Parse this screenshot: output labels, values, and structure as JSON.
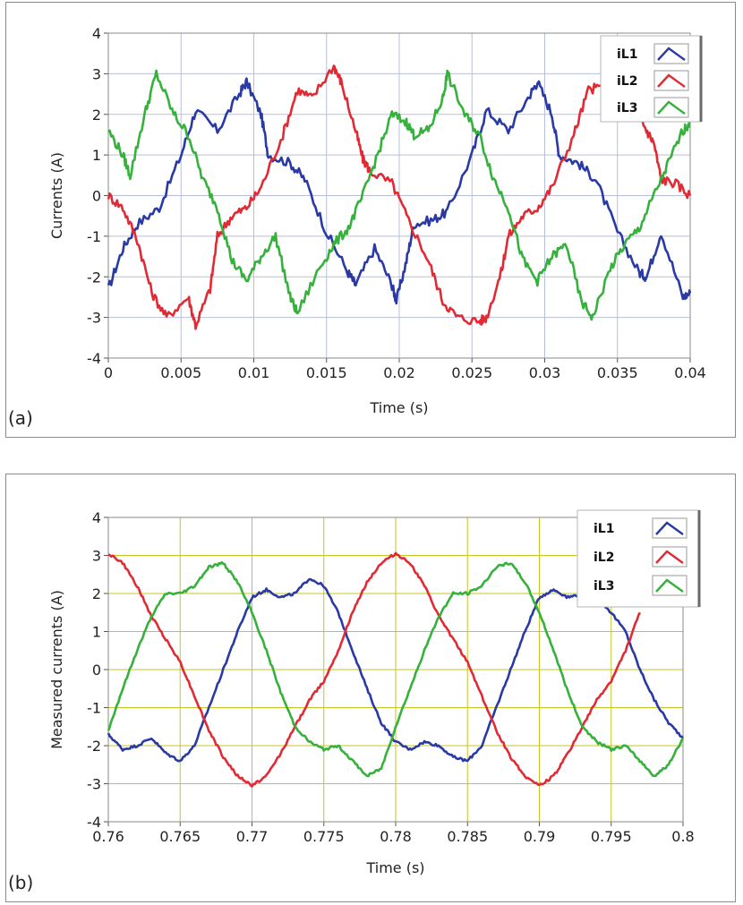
{
  "chart_data": [
    {
      "type": "line",
      "panel_label": "(a)",
      "xlabel": "Time (s)",
      "ylabel": "Currents (A)",
      "xlim": [
        0,
        0.04
      ],
      "ylim": [
        -4,
        4
      ],
      "x_ticks": [
        "0",
        "0.005",
        "0.01",
        "0.015",
        "0.02",
        "0.025",
        "0.03",
        "0.035",
        "0.04"
      ],
      "y_ticks": [
        "-4",
        "-3",
        "-2",
        "-1",
        "0",
        "1",
        "2",
        "3",
        "4"
      ],
      "grid": "on",
      "grid_color": "#b8bfdc",
      "legend_position": "top-right",
      "series": [
        {
          "name": "iL1",
          "color": "#2a3aa5",
          "points": [
            [
              0,
              -2.3
            ],
            [
              0.001,
              -1.3
            ],
            [
              0.002,
              -0.7
            ],
            [
              0.0035,
              -0.3
            ],
            [
              0.005,
              1.0
            ],
            [
              0.006,
              2.1
            ],
            [
              0.0075,
              1.6
            ],
            [
              0.009,
              2.5
            ],
            [
              0.0095,
              2.8
            ],
            [
              0.0105,
              2.0
            ],
            [
              0.011,
              1.0
            ],
            [
              0.0125,
              0.8
            ],
            [
              0.0135,
              0.4
            ],
            [
              0.015,
              -0.9
            ],
            [
              0.0165,
              -1.9
            ],
            [
              0.017,
              -2.2
            ],
            [
              0.0183,
              -1.3
            ],
            [
              0.0195,
              -2.2
            ],
            [
              0.0198,
              -2.6
            ],
            [
              0.0205,
              -1.6
            ],
            [
              0.021,
              -0.7
            ],
            [
              0.0223,
              -0.6
            ],
            [
              0.0233,
              -0.4
            ],
            [
              0.025,
              1.0
            ],
            [
              0.026,
              2.1
            ],
            [
              0.0275,
              1.6
            ],
            [
              0.029,
              2.5
            ],
            [
              0.0295,
              2.8
            ],
            [
              0.0305,
              2.0
            ],
            [
              0.031,
              1.0
            ],
            [
              0.0323,
              0.8
            ],
            [
              0.0335,
              0.4
            ],
            [
              0.035,
              -0.9
            ],
            [
              0.0365,
              -1.9
            ],
            [
              0.037,
              -2.0
            ],
            [
              0.038,
              -0.9
            ],
            [
              0.0395,
              -2.5
            ],
            [
              0.04,
              -2.4
            ]
          ]
        },
        {
          "name": "iL2",
          "color": "#e02b35",
          "points": [
            [
              0,
              0.0
            ],
            [
              0.001,
              -0.3
            ],
            [
              0.002,
              -1.1
            ],
            [
              0.003,
              -2.4
            ],
            [
              0.004,
              -3.0
            ],
            [
              0.0055,
              -2.5
            ],
            [
              0.006,
              -3.2
            ],
            [
              0.007,
              -2.3
            ],
            [
              0.0075,
              -1.0
            ],
            [
              0.0085,
              -0.5
            ],
            [
              0.0095,
              -0.3
            ],
            [
              0.0105,
              0.2
            ],
            [
              0.012,
              1.5
            ],
            [
              0.013,
              2.6
            ],
            [
              0.014,
              2.4
            ],
            [
              0.0155,
              3.2
            ],
            [
              0.016,
              2.8
            ],
            [
              0.017,
              1.6
            ],
            [
              0.0175,
              0.9
            ],
            [
              0.018,
              0.6
            ],
            [
              0.0195,
              0.3
            ],
            [
              0.0205,
              -0.5
            ],
            [
              0.022,
              -1.6
            ],
            [
              0.023,
              -2.6
            ],
            [
              0.024,
              -3.0
            ],
            [
              0.0255,
              -3.1
            ],
            [
              0.026,
              -3.0
            ],
            [
              0.027,
              -1.9
            ],
            [
              0.0275,
              -1.0
            ],
            [
              0.0285,
              -0.5
            ],
            [
              0.0295,
              -0.3
            ],
            [
              0.0305,
              0.2
            ],
            [
              0.032,
              1.5
            ],
            [
              0.033,
              2.6
            ],
            [
              0.034,
              2.7
            ],
            [
              0.0355,
              2.6
            ],
            [
              0.036,
              2.4
            ],
            [
              0.037,
              1.6
            ],
            [
              0.0375,
              1.3
            ],
            [
              0.038,
              0.4
            ],
            [
              0.039,
              0.3
            ],
            [
              0.04,
              0.0
            ]
          ]
        },
        {
          "name": "iL3",
          "color": "#35b13c",
          "points": [
            [
              0,
              1.6
            ],
            [
              0.001,
              1.0
            ],
            [
              0.0015,
              0.5
            ],
            [
              0.0025,
              2.0
            ],
            [
              0.0033,
              3.0
            ],
            [
              0.0045,
              2.0
            ],
            [
              0.0055,
              1.5
            ],
            [
              0.0065,
              0.4
            ],
            [
              0.0075,
              -0.3
            ],
            [
              0.0085,
              -1.6
            ],
            [
              0.0095,
              -2.1
            ],
            [
              0.0105,
              -1.5
            ],
            [
              0.0115,
              -1.0
            ],
            [
              0.0125,
              -2.5
            ],
            [
              0.013,
              -2.9
            ],
            [
              0.0145,
              -1.8
            ],
            [
              0.0155,
              -1.2
            ],
            [
              0.0165,
              -0.8
            ],
            [
              0.0175,
              0.0
            ],
            [
              0.0185,
              1.0
            ],
            [
              0.0195,
              2.0
            ],
            [
              0.0205,
              1.8
            ],
            [
              0.021,
              1.5
            ],
            [
              0.022,
              1.6
            ],
            [
              0.023,
              2.4
            ],
            [
              0.0233,
              3.0
            ],
            [
              0.0245,
              2.0
            ],
            [
              0.0255,
              1.5
            ],
            [
              0.0265,
              0.4
            ],
            [
              0.0275,
              -0.3
            ],
            [
              0.0285,
              -1.6
            ],
            [
              0.0295,
              -2.1
            ],
            [
              0.0305,
              -1.5
            ],
            [
              0.0315,
              -1.2
            ],
            [
              0.0325,
              -2.6
            ],
            [
              0.0333,
              -3.0
            ],
            [
              0.0345,
              -1.8
            ],
            [
              0.0355,
              -1.2
            ],
            [
              0.0365,
              -0.8
            ],
            [
              0.0375,
              0.0
            ],
            [
              0.0385,
              0.8
            ],
            [
              0.0395,
              1.6
            ],
            [
              0.04,
              1.8
            ]
          ]
        }
      ]
    },
    {
      "type": "line",
      "panel_label": "(b)",
      "xlabel": "Time (s)",
      "ylabel": "Measured currents (A)",
      "xlim": [
        0.76,
        0.8
      ],
      "ylim": [
        -4,
        4
      ],
      "x_ticks": [
        "0.76",
        "0.765",
        "0.77",
        "0.775",
        "0.78",
        "0.785",
        "0.79",
        "0.795",
        "0.8"
      ],
      "y_ticks": [
        "-4",
        "-3",
        "-2",
        "-1",
        "0",
        "1",
        "2",
        "3",
        "4"
      ],
      "grid": "on",
      "grid_color": "#c5c524",
      "legend_position": "top-right",
      "series": [
        {
          "name": "iL1",
          "color": "#2a3aa5",
          "points": [
            [
              0.76,
              -1.7
            ],
            [
              0.761,
              -2.1
            ],
            [
              0.762,
              -2.0
            ],
            [
              0.763,
              -1.8
            ],
            [
              0.764,
              -2.2
            ],
            [
              0.765,
              -2.4
            ],
            [
              0.766,
              -2.0
            ],
            [
              0.767,
              -1.0
            ],
            [
              0.768,
              0.0
            ],
            [
              0.769,
              1.0
            ],
            [
              0.77,
              1.9
            ],
            [
              0.771,
              2.1
            ],
            [
              0.772,
              1.9
            ],
            [
              0.773,
              2.0
            ],
            [
              0.774,
              2.4
            ],
            [
              0.775,
              2.2
            ],
            [
              0.776,
              1.5
            ],
            [
              0.777,
              0.5
            ],
            [
              0.778,
              -0.5
            ],
            [
              0.779,
              -1.4
            ],
            [
              0.78,
              -1.9
            ],
            [
              0.781,
              -2.1
            ],
            [
              0.782,
              -1.9
            ],
            [
              0.783,
              -2.0
            ],
            [
              0.784,
              -2.3
            ],
            [
              0.785,
              -2.4
            ],
            [
              0.786,
              -2.0
            ],
            [
              0.787,
              -1.0
            ],
            [
              0.788,
              0.0
            ],
            [
              0.789,
              1.0
            ],
            [
              0.79,
              1.9
            ],
            [
              0.791,
              2.1
            ],
            [
              0.792,
              1.9
            ],
            [
              0.793,
              2.0
            ],
            [
              0.794,
              1.9
            ],
            [
              0.795,
              1.5
            ],
            [
              0.796,
              1.0
            ],
            [
              0.797,
              0.0
            ],
            [
              0.798,
              -0.8
            ],
            [
              0.799,
              -1.4
            ],
            [
              0.8,
              -1.8
            ]
          ]
        },
        {
          "name": "iL2",
          "color": "#e02b35",
          "points": [
            [
              0.76,
              3.05
            ],
            [
              0.761,
              2.8
            ],
            [
              0.762,
              2.2
            ],
            [
              0.763,
              1.4
            ],
            [
              0.764,
              0.8
            ],
            [
              0.765,
              0.2
            ],
            [
              0.766,
              -0.7
            ],
            [
              0.767,
              -1.6
            ],
            [
              0.768,
              -2.3
            ],
            [
              0.769,
              -2.8
            ],
            [
              0.77,
              -3.05
            ],
            [
              0.771,
              -2.8
            ],
            [
              0.772,
              -2.2
            ],
            [
              0.773,
              -1.5
            ],
            [
              0.774,
              -0.8
            ],
            [
              0.775,
              -0.3
            ],
            [
              0.776,
              0.5
            ],
            [
              0.777,
              1.5
            ],
            [
              0.778,
              2.3
            ],
            [
              0.779,
              2.8
            ],
            [
              0.78,
              3.05
            ],
            [
              0.781,
              2.8
            ],
            [
              0.782,
              2.2
            ],
            [
              0.783,
              1.4
            ],
            [
              0.784,
              0.8
            ],
            [
              0.785,
              0.2
            ],
            [
              0.786,
              -0.7
            ],
            [
              0.787,
              -1.6
            ],
            [
              0.788,
              -2.3
            ],
            [
              0.789,
              -2.8
            ],
            [
              0.79,
              -3.05
            ],
            [
              0.791,
              -2.8
            ],
            [
              0.792,
              -2.2
            ],
            [
              0.793,
              -1.5
            ],
            [
              0.794,
              -0.8
            ],
            [
              0.795,
              -0.3
            ],
            [
              0.796,
              0.5
            ],
            [
              0.797,
              1.5
            ]
          ]
        },
        {
          "name": "iL3",
          "color": "#35b13c",
          "points": [
            [
              0.76,
              -1.6
            ],
            [
              0.761,
              -0.5
            ],
            [
              0.762,
              0.5
            ],
            [
              0.763,
              1.4
            ],
            [
              0.764,
              2.0
            ],
            [
              0.765,
              2.0
            ],
            [
              0.766,
              2.2
            ],
            [
              0.767,
              2.7
            ],
            [
              0.768,
              2.8
            ],
            [
              0.769,
              2.3
            ],
            [
              0.77,
              1.5
            ],
            [
              0.771,
              0.5
            ],
            [
              0.772,
              -0.6
            ],
            [
              0.773,
              -1.5
            ],
            [
              0.774,
              -1.9
            ],
            [
              0.775,
              -2.1
            ],
            [
              0.776,
              -2.0
            ],
            [
              0.777,
              -2.4
            ],
            [
              0.778,
              -2.8
            ],
            [
              0.779,
              -2.6
            ],
            [
              0.78,
              -1.5
            ],
            [
              0.781,
              -0.5
            ],
            [
              0.782,
              0.5
            ],
            [
              0.783,
              1.4
            ],
            [
              0.784,
              2.0
            ],
            [
              0.785,
              2.0
            ],
            [
              0.786,
              2.2
            ],
            [
              0.787,
              2.7
            ],
            [
              0.788,
              2.8
            ],
            [
              0.789,
              2.3
            ],
            [
              0.79,
              1.5
            ],
            [
              0.791,
              0.5
            ],
            [
              0.792,
              -0.6
            ],
            [
              0.793,
              -1.5
            ],
            [
              0.794,
              -1.9
            ],
            [
              0.795,
              -2.1
            ],
            [
              0.796,
              -2.0
            ],
            [
              0.797,
              -2.4
            ],
            [
              0.798,
              -2.8
            ],
            [
              0.799,
              -2.5
            ],
            [
              0.8,
              -1.8
            ]
          ]
        }
      ]
    }
  ]
}
